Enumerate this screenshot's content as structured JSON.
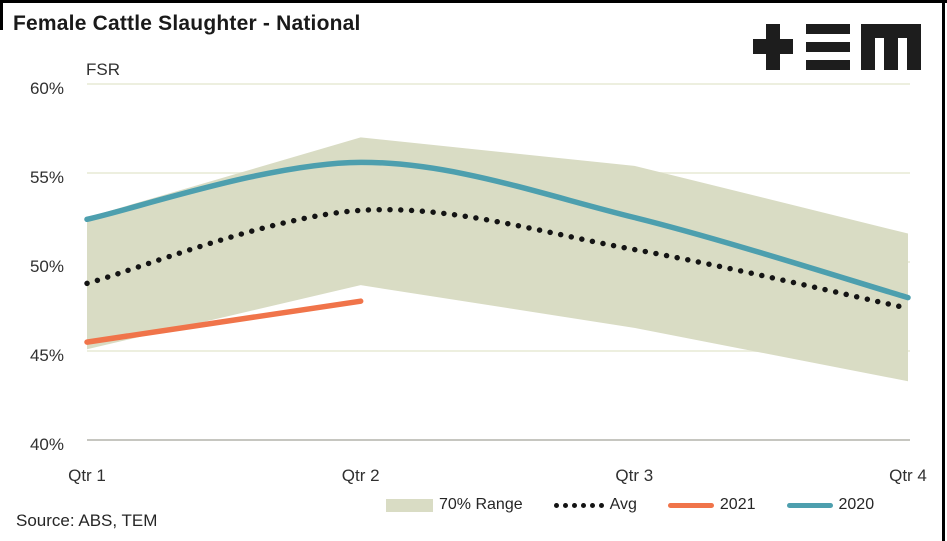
{
  "header": {
    "title": "Female Cattle Slaughter - National",
    "logo_name": "TEM"
  },
  "chart_data": {
    "type": "area",
    "title": "Female Cattle Slaughter - National",
    "axis_label": "FSR",
    "categories": [
      "Qtr 1",
      "Qtr 2",
      "Qtr 3",
      "Qtr 4"
    ],
    "ylim": [
      40,
      60
    ],
    "y_tick_values": [
      60,
      55,
      50,
      45,
      40
    ],
    "y_tick_labels": [
      "60%",
      "55%",
      "50%",
      "45%",
      "40%"
    ],
    "grid": true,
    "legend_position": "bottom",
    "band": {
      "name": "70% Range",
      "top": [
        52.5,
        57.0,
        55.4,
        51.6
      ],
      "bottom": [
        45.1,
        48.7,
        46.3,
        43.3
      ],
      "color": "#d9dcc4"
    },
    "series": [
      {
        "name": "Avg",
        "style": "dotted",
        "color": "#141414",
        "values": [
          48.8,
          52.9,
          50.7,
          47.4
        ]
      },
      {
        "name": "2021",
        "style": "solid",
        "color": "#f0744a",
        "values": [
          45.5,
          47.8,
          null,
          null
        ]
      },
      {
        "name": "2020",
        "style": "solid",
        "color": "#4d9fae",
        "values": [
          52.4,
          55.6,
          52.5,
          48.0
        ]
      }
    ],
    "colors": {
      "gridline": "#edefdf",
      "baseline": "#c6c6c0",
      "band": "#d9dcc4",
      "avg": "#141414",
      "y2021": "#f0744a",
      "y2020": "#4d9fae"
    }
  },
  "legend": {
    "items": [
      {
        "label": "70% Range",
        "marker": "band",
        "color": "#d9dcc4"
      },
      {
        "label": "Avg",
        "marker": "dotted",
        "color": "#141414"
      },
      {
        "label": "2021",
        "marker": "line",
        "color": "#f0744a"
      },
      {
        "label": "2020",
        "marker": "line",
        "color": "#4d9fae"
      }
    ]
  },
  "footer": {
    "source": "Source: ABS, TEM"
  }
}
